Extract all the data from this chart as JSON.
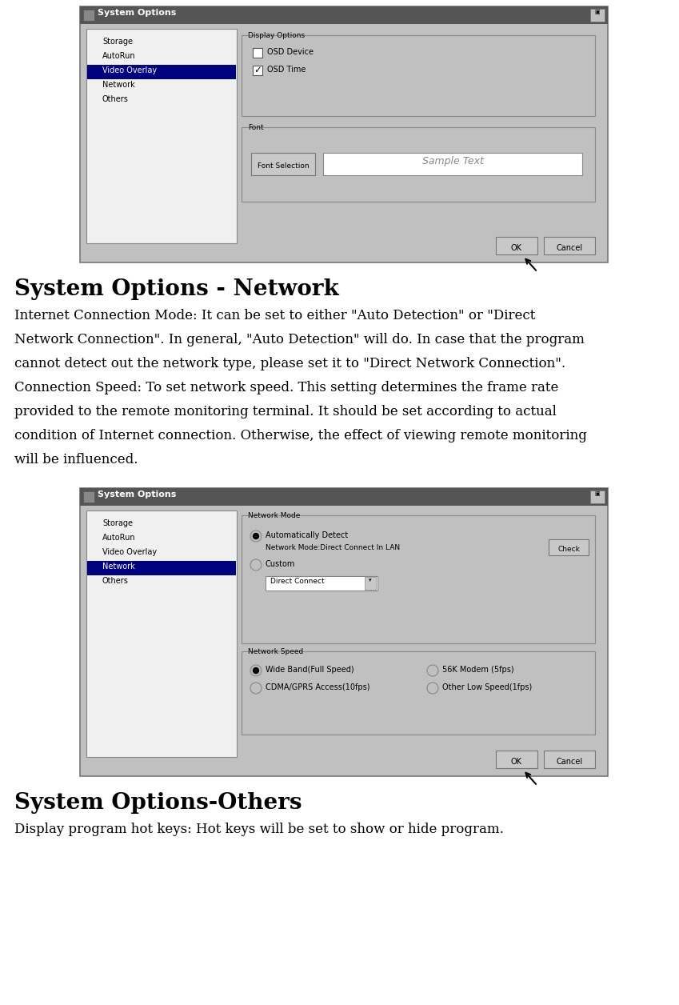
{
  "bg_color": "#ffffff",
  "title1": "System Options - Network",
  "title2": "System Options-Others",
  "body_lines1": [
    "Internet Connection Mode: It can be set to either \"Auto Detection\" or \"Direct",
    "Network Connection\". In general, \"Auto Detection\" will do. In case that the program",
    "cannot detect out the network type, please set it to \"Direct Network Connection\".",
    "Connection Speed: To set network speed. This setting determines the frame rate",
    "provided to the remote monitoring terminal. It should be set according to actual",
    "condition of Internet connection. Otherwise, the effect of viewing remote monitoring",
    "will be influenced."
  ],
  "body_text2": "Display program hot keys: Hot keys will be set to show or hide program.",
  "dialog1_title": "System Options",
  "dialog1_sidebar": [
    "Storage",
    "AutoRun",
    "Video Overlay",
    "Network",
    "Others"
  ],
  "dialog1_selected": "Video Overlay",
  "dialog2_title": "System Options",
  "dialog2_sidebar": [
    "Storage",
    "AutoRun",
    "Video Overlay",
    "Network",
    "Others"
  ],
  "dialog2_selected": "Network",
  "titlebar_color": "#555555",
  "titlebar_text_color": "#ffffff",
  "dialog_bg": "#c0c0c0",
  "sidebar_bg": "#f0f0f0",
  "selected_bg": "#000080",
  "selected_fg": "#ffffff",
  "text_color": "#000000",
  "font_size_title": 20,
  "font_size_body": 12,
  "font_size_dialog": 7.5
}
